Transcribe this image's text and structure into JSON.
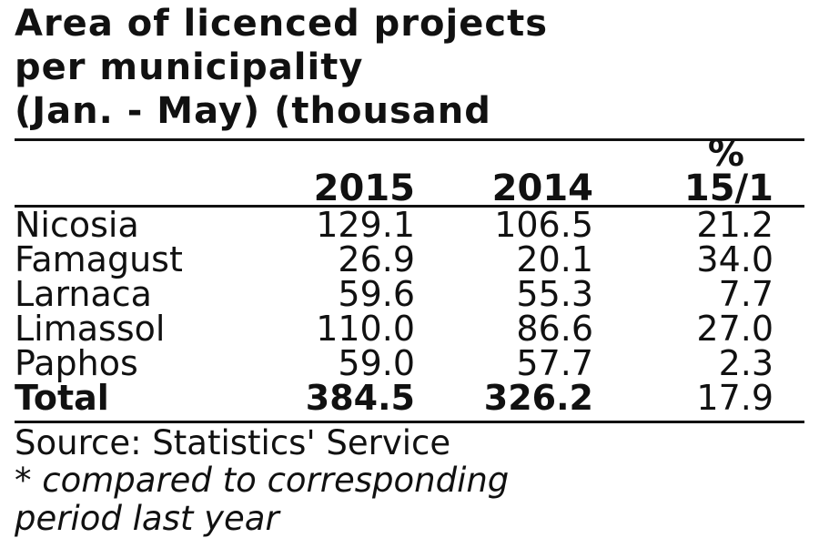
{
  "chart_data": {
    "type": "table",
    "title_lines": [
      "Area of licenced projects",
      "per municipality",
      "(Jan. - May) (thousand"
    ],
    "columns": [
      "2015",
      "2014",
      "% 15/1"
    ],
    "column_header_parts": {
      "pct_top": "%",
      "pct_bottom": "15/1"
    },
    "rows": [
      {
        "label": "Nicosia",
        "v2015": "129.1",
        "v2014": "106.5",
        "pct": "21.2"
      },
      {
        "label": "Famagust",
        "v2015": "26.9",
        "v2014": "20.1",
        "pct": "34.0"
      },
      {
        "label": "Larnaca",
        "v2015": "59.6",
        "v2014": "55.3",
        "pct": "7.7"
      },
      {
        "label": "Limassol",
        "v2015": "110.0",
        "v2014": "86.6",
        "pct": "27.0"
      },
      {
        "label": "Paphos",
        "v2015": "59.0",
        "v2014": "57.7",
        "pct": "2.3"
      }
    ],
    "total": {
      "label": "Total",
      "v2015": "384.5",
      "v2014": "326.2",
      "pct": "17.9"
    },
    "source": "Source: Statistics' Service",
    "footnote_lines": [
      "* compared to corresponding",
      "period last year"
    ]
  }
}
